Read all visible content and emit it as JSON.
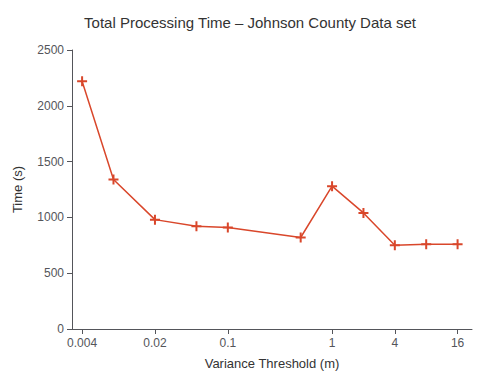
{
  "chart_data": {
    "type": "line",
    "title": "Total Processing Time – Johnson County Data set",
    "x_label": "Variance Threshold (m)",
    "y_label": "Time (s)",
    "x": [
      0.004,
      0.008,
      0.02,
      0.05,
      0.1,
      0.5,
      1.0,
      2.0,
      4.0,
      8.0,
      16.0
    ],
    "values": [
      2220,
      1340,
      980,
      920,
      910,
      820,
      1280,
      1040,
      750,
      760,
      760
    ],
    "color": "#d9472b",
    "marker": "plus",
    "log": "x",
    "xlim": [
      0.0032,
      22
    ],
    "xticks": [
      0.004,
      0.02,
      0.1,
      1,
      4,
      16
    ],
    "ylim": [
      0,
      2500
    ],
    "yticks": [
      0,
      500,
      1000,
      1500,
      2000,
      2500
    ],
    "grid": false
  }
}
